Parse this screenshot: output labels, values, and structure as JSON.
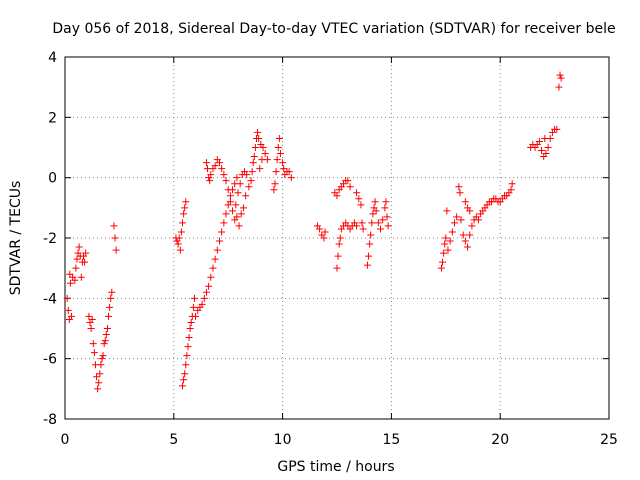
{
  "chart_data": {
    "type": "scatter",
    "title": "Day 056 of 2018, Sidereal Day-to-day VTEC variation (SDTVAR) for receiver bele",
    "xlabel": "GPS time / hours",
    "ylabel": "SDTVAR / TECUs",
    "xlim": [
      0,
      25
    ],
    "ylim": [
      -8,
      4
    ],
    "xticks": [
      0,
      5,
      10,
      15,
      20,
      25
    ],
    "yticks": [
      -8,
      -6,
      -4,
      -2,
      0,
      2,
      4
    ],
    "grid": true,
    "marker": "+",
    "color": "#ff0000",
    "series": [
      {
        "name": "SDTVAR",
        "points": [
          [
            0.1,
            -4.0
          ],
          [
            0.15,
            -4.4
          ],
          [
            0.2,
            -4.7
          ],
          [
            0.22,
            -3.2
          ],
          [
            0.25,
            -3.5
          ],
          [
            0.3,
            -4.6
          ],
          [
            0.35,
            -3.3
          ],
          [
            0.45,
            -3.4
          ],
          [
            0.5,
            -3.0
          ],
          [
            0.55,
            -2.7
          ],
          [
            0.6,
            -2.5
          ],
          [
            0.65,
            -2.3
          ],
          [
            0.7,
            -2.6
          ],
          [
            0.75,
            -3.3
          ],
          [
            0.8,
            -2.8
          ],
          [
            0.85,
            -2.6
          ],
          [
            0.9,
            -2.8
          ],
          [
            0.95,
            -2.5
          ],
          [
            1.1,
            -4.6
          ],
          [
            1.15,
            -4.8
          ],
          [
            1.2,
            -5.0
          ],
          [
            1.25,
            -4.7
          ],
          [
            1.3,
            -5.5
          ],
          [
            1.35,
            -5.8
          ],
          [
            1.4,
            -6.2
          ],
          [
            1.45,
            -6.6
          ],
          [
            1.5,
            -7.0
          ],
          [
            1.55,
            -6.8
          ],
          [
            1.6,
            -6.5
          ],
          [
            1.65,
            -6.2
          ],
          [
            1.7,
            -6.0
          ],
          [
            1.75,
            -5.9
          ],
          [
            1.8,
            -5.5
          ],
          [
            1.85,
            -5.4
          ],
          [
            1.9,
            -5.2
          ],
          [
            1.95,
            -5.0
          ],
          [
            2.0,
            -4.6
          ],
          [
            2.05,
            -4.3
          ],
          [
            2.1,
            -4.0
          ],
          [
            2.15,
            -3.8
          ],
          [
            2.25,
            -1.6
          ],
          [
            2.3,
            -2.0
          ],
          [
            2.35,
            -2.4
          ],
          [
            5.1,
            -2.0
          ],
          [
            5.15,
            -2.1
          ],
          [
            5.2,
            -2.2
          ],
          [
            5.25,
            -2.0
          ],
          [
            5.3,
            -2.4
          ],
          [
            5.35,
            -1.8
          ],
          [
            5.4,
            -1.5
          ],
          [
            5.45,
            -1.2
          ],
          [
            5.5,
            -1.0
          ],
          [
            5.55,
            -0.8
          ],
          [
            5.4,
            -6.9
          ],
          [
            5.45,
            -6.7
          ],
          [
            5.5,
            -6.5
          ],
          [
            5.55,
            -6.2
          ],
          [
            5.6,
            -5.9
          ],
          [
            5.65,
            -5.6
          ],
          [
            5.7,
            -5.3
          ],
          [
            5.75,
            -5.0
          ],
          [
            5.8,
            -4.8
          ],
          [
            5.85,
            -4.6
          ],
          [
            5.9,
            -4.3
          ],
          [
            5.95,
            -4.0
          ],
          [
            6.0,
            -4.6
          ],
          [
            6.1,
            -4.4
          ],
          [
            6.2,
            -4.3
          ],
          [
            6.3,
            -4.2
          ],
          [
            6.4,
            -4.0
          ],
          [
            6.5,
            -3.8
          ],
          [
            6.6,
            -3.6
          ],
          [
            6.7,
            -3.3
          ],
          [
            6.8,
            -3.0
          ],
          [
            6.9,
            -2.7
          ],
          [
            7.0,
            -2.4
          ],
          [
            7.1,
            -2.1
          ],
          [
            7.2,
            -1.8
          ],
          [
            7.3,
            -1.5
          ],
          [
            7.4,
            -1.2
          ],
          [
            7.5,
            -0.9
          ],
          [
            7.6,
            -0.6
          ],
          [
            7.7,
            -0.4
          ],
          [
            7.8,
            -0.2
          ],
          [
            7.9,
            0.0
          ],
          [
            6.5,
            0.5
          ],
          [
            6.55,
            0.3
          ],
          [
            6.6,
            0.0
          ],
          [
            6.65,
            -0.1
          ],
          [
            6.7,
            0.1
          ],
          [
            6.8,
            0.3
          ],
          [
            6.9,
            0.4
          ],
          [
            7.0,
            0.6
          ],
          [
            7.1,
            0.5
          ],
          [
            7.2,
            0.3
          ],
          [
            7.3,
            0.1
          ],
          [
            7.4,
            -0.1
          ],
          [
            7.5,
            -0.4
          ],
          [
            7.6,
            -0.8
          ],
          [
            7.7,
            -1.1
          ],
          [
            7.8,
            -1.4
          ],
          [
            7.9,
            -1.3
          ],
          [
            8.0,
            -1.6
          ],
          [
            8.1,
            -1.2
          ],
          [
            8.2,
            -1.0
          ],
          [
            8.3,
            -0.6
          ],
          [
            7.85,
            -0.9
          ],
          [
            7.95,
            -0.5
          ],
          [
            8.05,
            -0.2
          ],
          [
            8.15,
            0.1
          ],
          [
            8.25,
            0.2
          ],
          [
            8.35,
            0.1
          ],
          [
            8.45,
            -0.3
          ],
          [
            8.55,
            -0.1
          ],
          [
            8.6,
            0.2
          ],
          [
            8.65,
            0.5
          ],
          [
            8.7,
            0.7
          ],
          [
            8.75,
            1.0
          ],
          [
            8.8,
            1.3
          ],
          [
            8.85,
            1.5
          ],
          [
            8.9,
            1.3
          ],
          [
            9.0,
            1.1
          ],
          [
            9.1,
            1.0
          ],
          [
            9.2,
            0.8
          ],
          [
            9.3,
            0.6
          ],
          [
            8.95,
            0.3
          ],
          [
            9.05,
            0.6
          ],
          [
            9.6,
            -0.4
          ],
          [
            9.65,
            -0.2
          ],
          [
            9.7,
            0.2
          ],
          [
            9.75,
            0.6
          ],
          [
            9.8,
            1.0
          ],
          [
            9.85,
            1.3
          ],
          [
            9.9,
            0.8
          ],
          [
            10.0,
            0.5
          ],
          [
            10.05,
            0.3
          ],
          [
            10.1,
            0.1
          ],
          [
            10.2,
            0.2
          ],
          [
            10.3,
            0.2
          ],
          [
            10.4,
            0.0
          ],
          [
            11.6,
            -1.6
          ],
          [
            11.7,
            -1.7
          ],
          [
            11.8,
            -1.9
          ],
          [
            11.9,
            -2.0
          ],
          [
            11.95,
            -1.8
          ],
          [
            12.4,
            -0.5
          ],
          [
            12.5,
            -0.6
          ],
          [
            12.6,
            -0.4
          ],
          [
            12.7,
            -0.3
          ],
          [
            12.8,
            -0.2
          ],
          [
            12.9,
            -0.1
          ],
          [
            13.0,
            -0.1
          ],
          [
            13.1,
            -0.3
          ],
          [
            12.5,
            -3.0
          ],
          [
            12.55,
            -2.6
          ],
          [
            12.6,
            -2.2
          ],
          [
            12.65,
            -2.0
          ],
          [
            12.7,
            -1.7
          ],
          [
            12.8,
            -1.6
          ],
          [
            12.9,
            -1.5
          ],
          [
            13.0,
            -1.6
          ],
          [
            13.1,
            -1.7
          ],
          [
            13.2,
            -1.6
          ],
          [
            13.3,
            -1.5
          ],
          [
            13.4,
            -1.6
          ],
          [
            13.4,
            -0.5
          ],
          [
            13.5,
            -0.7
          ],
          [
            13.6,
            -0.9
          ],
          [
            13.65,
            -1.5
          ],
          [
            13.7,
            -1.7
          ],
          [
            13.9,
            -2.9
          ],
          [
            13.95,
            -2.6
          ],
          [
            14.0,
            -2.2
          ],
          [
            14.05,
            -1.9
          ],
          [
            14.1,
            -1.5
          ],
          [
            14.15,
            -1.2
          ],
          [
            14.2,
            -1.0
          ],
          [
            14.25,
            -0.8
          ],
          [
            14.3,
            -1.1
          ],
          [
            14.4,
            -1.5
          ],
          [
            14.5,
            -1.7
          ],
          [
            14.6,
            -1.4
          ],
          [
            14.7,
            -1.0
          ],
          [
            14.75,
            -0.8
          ],
          [
            14.8,
            -1.3
          ],
          [
            14.85,
            -1.6
          ],
          [
            17.3,
            -3.0
          ],
          [
            17.35,
            -2.8
          ],
          [
            17.4,
            -2.5
          ],
          [
            17.45,
            -2.2
          ],
          [
            17.5,
            -2.0
          ],
          [
            17.55,
            -1.1
          ],
          [
            17.6,
            -2.4
          ],
          [
            17.7,
            -2.1
          ],
          [
            17.8,
            -1.8
          ],
          [
            17.9,
            -1.5
          ],
          [
            18.0,
            -1.3
          ],
          [
            18.1,
            -0.3
          ],
          [
            18.15,
            -0.5
          ],
          [
            18.2,
            -1.4
          ],
          [
            18.3,
            -1.9
          ],
          [
            18.4,
            -2.1
          ],
          [
            18.5,
            -2.3
          ],
          [
            18.6,
            -1.9
          ],
          [
            18.7,
            -1.6
          ],
          [
            18.8,
            -1.4
          ],
          [
            18.9,
            -1.3
          ],
          [
            19.0,
            -1.4
          ],
          [
            19.1,
            -1.2
          ],
          [
            19.2,
            -1.1
          ],
          [
            19.3,
            -1.0
          ],
          [
            19.4,
            -0.9
          ],
          [
            19.5,
            -0.8
          ],
          [
            19.6,
            -0.8
          ],
          [
            19.7,
            -0.7
          ],
          [
            19.8,
            -0.7
          ],
          [
            19.9,
            -0.8
          ],
          [
            20.0,
            -0.8
          ],
          [
            20.1,
            -0.7
          ],
          [
            20.2,
            -0.6
          ],
          [
            20.3,
            -0.6
          ],
          [
            20.4,
            -0.5
          ],
          [
            20.5,
            -0.4
          ],
          [
            20.55,
            -0.2
          ],
          [
            18.4,
            -0.8
          ],
          [
            18.5,
            -1.0
          ],
          [
            18.6,
            -1.1
          ],
          [
            21.4,
            1.0
          ],
          [
            21.5,
            1.1
          ],
          [
            21.6,
            1.0
          ],
          [
            21.7,
            1.1
          ],
          [
            21.8,
            1.2
          ],
          [
            21.9,
            0.9
          ],
          [
            22.0,
            0.7
          ],
          [
            22.05,
            1.3
          ],
          [
            22.1,
            0.8
          ],
          [
            22.2,
            1.0
          ],
          [
            22.3,
            1.3
          ],
          [
            22.4,
            1.5
          ],
          [
            22.5,
            1.6
          ],
          [
            22.6,
            1.6
          ],
          [
            22.7,
            3.0
          ],
          [
            22.75,
            3.4
          ],
          [
            22.8,
            3.3
          ]
        ]
      }
    ]
  }
}
